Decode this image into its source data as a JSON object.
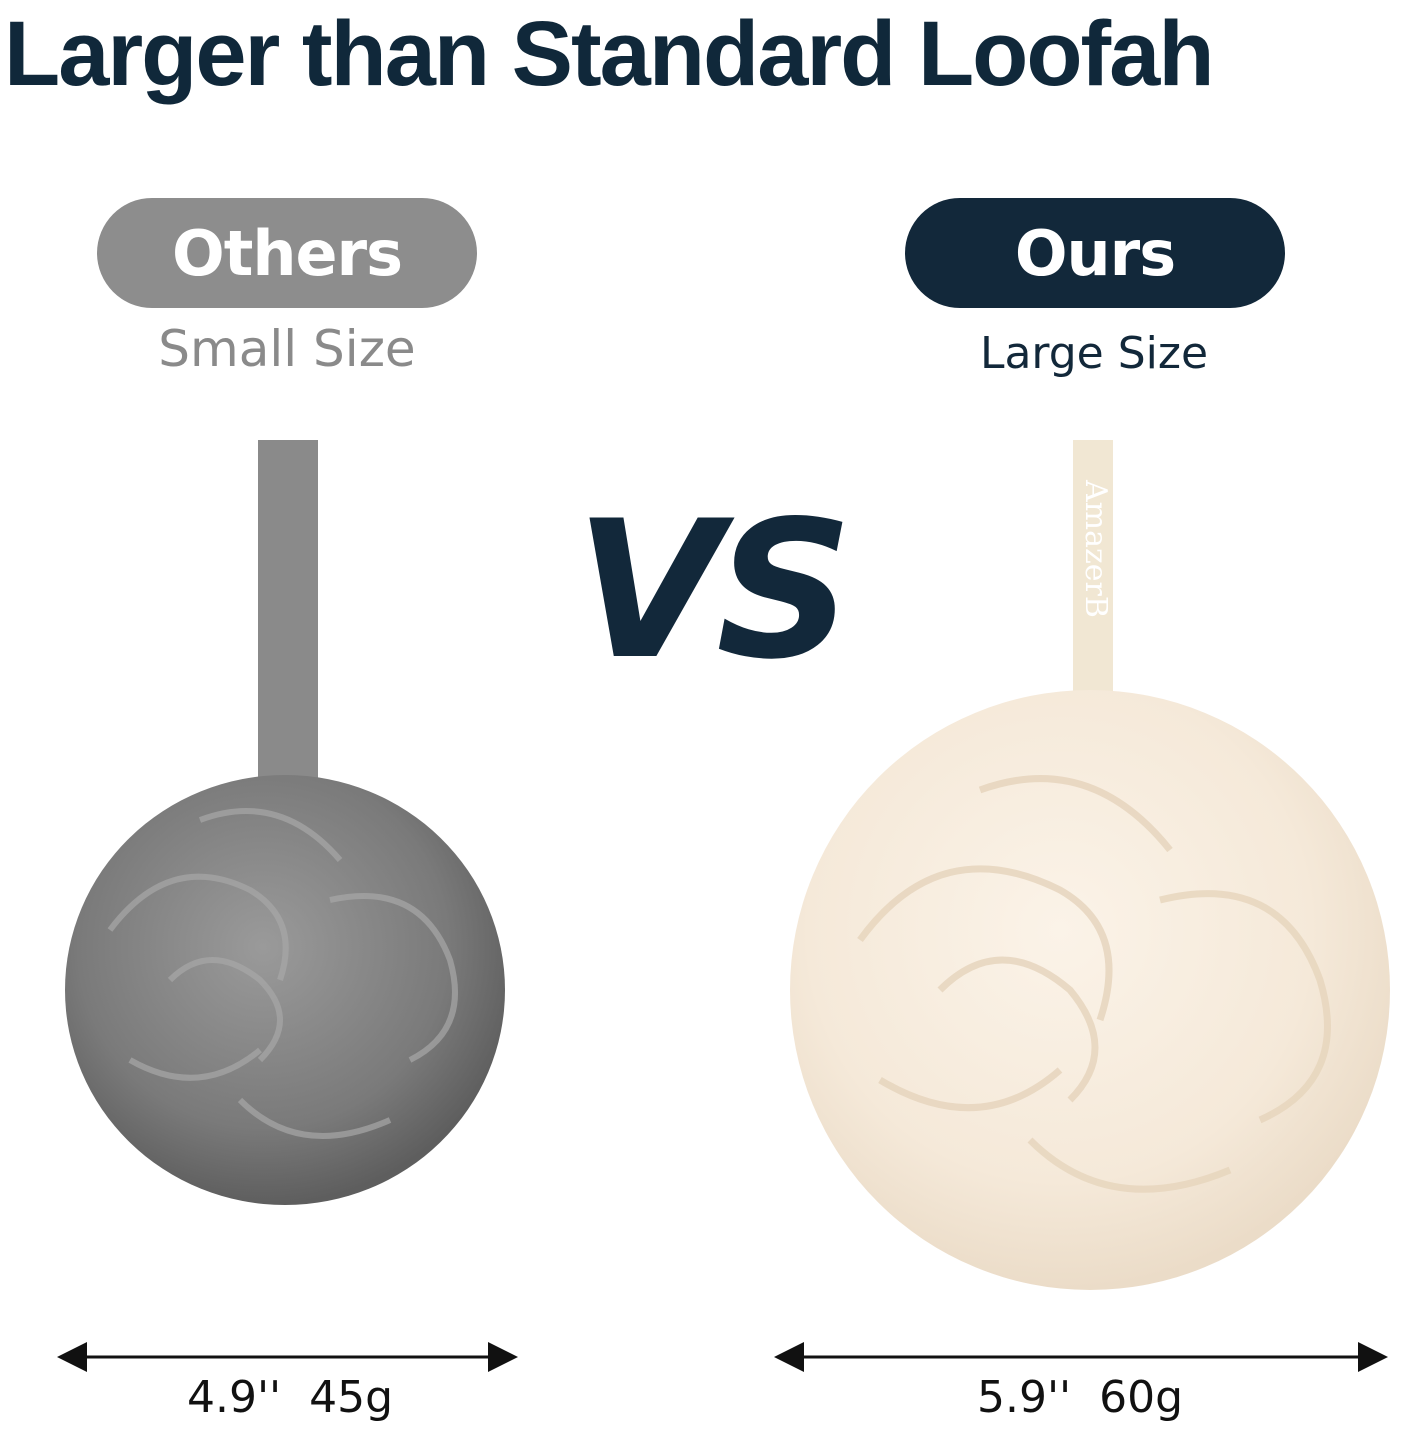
{
  "title": "Larger than Standard Loofah",
  "others": {
    "label": "Others",
    "subtitle": "Small Size",
    "measurement": "4.9''  45g",
    "color": "#8d8d8d"
  },
  "ours": {
    "label": "Ours",
    "subtitle": "Large Size",
    "measurement": "5.9''  60g",
    "color": "#12283a",
    "strap_text": "AmazerB"
  },
  "vs": "VS",
  "colors": {
    "navy": "#12283a",
    "gray_loofah": "#7d7d7d",
    "cream_loofah": "#f7ede0"
  }
}
